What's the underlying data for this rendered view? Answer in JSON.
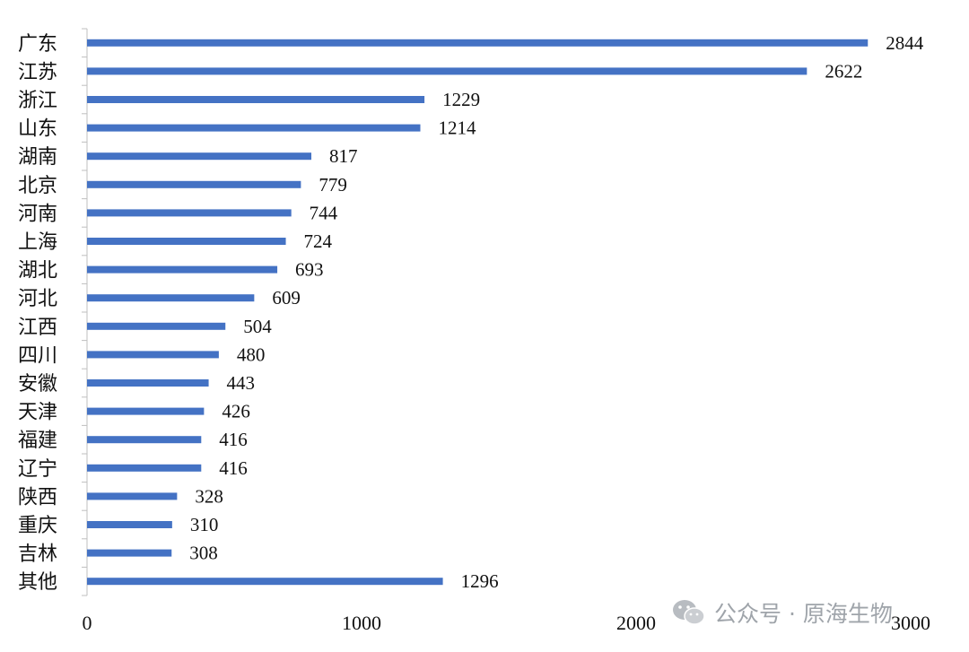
{
  "chart_data": {
    "type": "bar",
    "orientation": "horizontal",
    "categories": [
      "广东",
      "江苏",
      "浙江",
      "山东",
      "湖南",
      "北京",
      "河南",
      "上海",
      "湖北",
      "河北",
      "江西",
      "四川",
      "安徽",
      "天津",
      "福建",
      "辽宁",
      "陕西",
      "重庆",
      "吉林",
      "其他"
    ],
    "values": [
      2844,
      2622,
      1229,
      1214,
      817,
      779,
      744,
      724,
      693,
      609,
      504,
      480,
      443,
      426,
      416,
      416,
      328,
      310,
      308,
      1296
    ],
    "xlim": [
      0,
      3000
    ],
    "xticks": [
      0,
      1000,
      2000,
      3000
    ],
    "title": "",
    "xlabel": "",
    "ylabel": "",
    "grid": false,
    "legend": "none",
    "bar_color": "#4472C4"
  },
  "watermark": {
    "text": "公众号 · 原海生物",
    "icon": "wechat-icon"
  }
}
